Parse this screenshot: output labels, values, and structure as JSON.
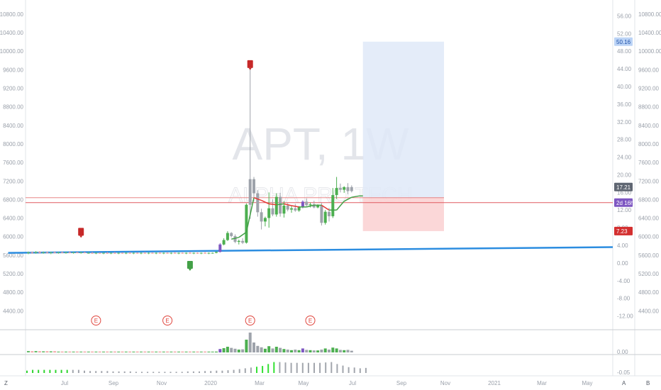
{
  "chart_data": {
    "type": "candlestick",
    "symbol_watermark": "APT, 1W",
    "subtitle_watermark": "ALPHA PRO TECH",
    "x_labels": [
      "Jul",
      "Sep",
      "Nov",
      "2020",
      "Mar",
      "May",
      "Jul",
      "Sep",
      "Nov",
      "2021",
      "Mar",
      "May"
    ],
    "left_axis": {
      "ticks": [
        "4400.00",
        "4800.00",
        "5200.00",
        "5600.00",
        "6000.00",
        "6400.00",
        "6800.00",
        "7200.00",
        "7600.00",
        "8000.00",
        "8400.00",
        "8800.00",
        "9200.00",
        "9600.00",
        "10000.00",
        "10400.00",
        "10800.00"
      ],
      "ylim": [
        4100,
        10950
      ]
    },
    "right_axis": {
      "ticks": [
        "-12.00",
        "-8.00",
        "-4.00",
        "0.00",
        "4.00",
        "8.00",
        "12.00",
        "16.00",
        "20.00",
        "24.00",
        "28.00",
        "32.00",
        "36.00",
        "40.00",
        "44.00",
        "48.00",
        "52.00",
        "56.00"
      ],
      "ylim": [
        -14,
        58
      ]
    },
    "far_right_axis": {
      "ticks": [
        "4400.00",
        "4800.00",
        "5200.00",
        "5600.00",
        "6000.00",
        "6400.00",
        "6800.00",
        "7200.00",
        "7600.00",
        "8000.00",
        "8400.00",
        "8800.00",
        "9200.00",
        "9600.00",
        "10000.00",
        "10400.00",
        "10800.00"
      ]
    },
    "price_labels": [
      {
        "text": "50.16",
        "value": 50.16,
        "color": "#bcd4f6",
        "text_color": "#1d4fa8"
      },
      {
        "text": "17.21",
        "value": 17.21,
        "color": "#5f6672",
        "text_color": "#ffffff"
      },
      {
        "text": "2d 16h",
        "value": 14.8,
        "color": "#7e57c2",
        "text_color": "#ffffff"
      },
      {
        "text": "7.23",
        "value": 7.23,
        "color": "#d32f2f",
        "text_color": "#ffffff"
      }
    ],
    "candles": [
      {
        "o": 2.3,
        "h": 2.6,
        "l": 2.0,
        "c": 2.4,
        "v": 0.5,
        "up": true
      },
      {
        "o": 2.4,
        "h": 2.6,
        "l": 2.1,
        "c": 2.3,
        "v": 0.4,
        "up": false
      },
      {
        "o": 2.3,
        "h": 2.7,
        "l": 2.1,
        "c": 2.5,
        "v": 0.5,
        "up": true
      },
      {
        "o": 2.5,
        "h": 2.7,
        "l": 2.2,
        "c": 2.3,
        "v": 0.4,
        "up": false
      },
      {
        "o": 2.3,
        "h": 2.6,
        "l": 2.1,
        "c": 2.4,
        "v": 0.4,
        "up": true
      },
      {
        "o": 2.4,
        "h": 2.6,
        "l": 2.2,
        "c": 2.3,
        "v": 0.4,
        "up": false
      },
      {
        "o": 2.3,
        "h": 2.5,
        "l": 2.0,
        "c": 2.4,
        "v": 0.4,
        "up": true
      },
      {
        "o": 2.4,
        "h": 2.6,
        "l": 2.2,
        "c": 2.3,
        "v": 0.4,
        "up": false
      },
      {
        "o": 2.3,
        "h": 2.5,
        "l": 2.1,
        "c": 2.4,
        "v": 0.3,
        "up": true
      },
      {
        "o": 2.4,
        "h": 2.6,
        "l": 2.2,
        "c": 2.3,
        "v": 0.3,
        "up": false
      },
      {
        "o": 2.3,
        "h": 2.5,
        "l": 2.1,
        "c": 2.4,
        "v": 0.3,
        "up": true
      },
      {
        "o": 2.4,
        "h": 2.6,
        "l": 2.2,
        "c": 2.3,
        "v": 0.3,
        "up": false
      },
      {
        "o": 2.3,
        "h": 2.5,
        "l": 2.1,
        "c": 2.4,
        "v": 0.3,
        "up": true
      },
      {
        "o": 2.4,
        "h": 2.5,
        "l": 2.2,
        "c": 2.3,
        "v": 0.3,
        "up": false
      },
      {
        "o": 2.3,
        "h": 2.5,
        "l": 2.1,
        "c": 2.4,
        "v": 0.3,
        "up": true
      },
      {
        "o": 2.4,
        "h": 2.5,
        "l": 2.2,
        "c": 2.3,
        "v": 0.3,
        "up": false
      },
      {
        "o": 2.3,
        "h": 2.5,
        "l": 2.1,
        "c": 2.3,
        "v": 0.3,
        "up": true
      },
      {
        "o": 2.3,
        "h": 2.5,
        "l": 2.1,
        "c": 2.2,
        "v": 0.3,
        "up": false
      },
      {
        "o": 2.2,
        "h": 2.4,
        "l": 2.0,
        "c": 2.3,
        "v": 0.3,
        "up": true
      },
      {
        "o": 2.3,
        "h": 2.4,
        "l": 2.1,
        "c": 2.2,
        "v": 0.3,
        "up": false
      },
      {
        "o": 2.2,
        "h": 2.4,
        "l": 2.0,
        "c": 2.3,
        "v": 0.3,
        "up": true
      },
      {
        "o": 2.3,
        "h": 2.5,
        "l": 2.1,
        "c": 2.2,
        "v": 0.3,
        "up": false
      },
      {
        "o": 2.2,
        "h": 2.4,
        "l": 2.0,
        "c": 2.3,
        "v": 0.3,
        "up": true
      },
      {
        "o": 2.3,
        "h": 2.5,
        "l": 2.1,
        "c": 2.2,
        "v": 0.3,
        "up": false
      },
      {
        "o": 2.2,
        "h": 2.4,
        "l": 2.0,
        "c": 2.3,
        "v": 0.3,
        "up": true
      },
      {
        "o": 2.3,
        "h": 2.4,
        "l": 2.1,
        "c": 2.2,
        "v": 0.3,
        "up": false
      },
      {
        "o": 2.2,
        "h": 2.4,
        "l": 2.0,
        "c": 2.3,
        "v": 0.3,
        "up": true
      },
      {
        "o": 2.3,
        "h": 2.5,
        "l": 2.1,
        "c": 2.2,
        "v": 0.3,
        "up": false
      },
      {
        "o": 2.2,
        "h": 2.4,
        "l": 2.0,
        "c": 2.3,
        "v": 0.3,
        "up": true
      },
      {
        "o": 2.3,
        "h": 2.4,
        "l": 2.1,
        "c": 2.2,
        "v": 0.3,
        "up": false
      },
      {
        "o": 2.2,
        "h": 2.4,
        "l": 2.0,
        "c": 2.3,
        "v": 0.3,
        "up": true
      },
      {
        "o": 2.3,
        "h": 2.5,
        "l": 2.1,
        "c": 2.2,
        "v": 0.3,
        "up": false
      },
      {
        "o": 2.2,
        "h": 2.4,
        "l": 2.0,
        "c": 2.3,
        "v": 0.3,
        "up": true
      },
      {
        "o": 2.3,
        "h": 2.4,
        "l": 2.1,
        "c": 2.2,
        "v": 0.3,
        "up": false
      },
      {
        "o": 2.2,
        "h": 2.4,
        "l": 2.0,
        "c": 2.3,
        "v": 0.3,
        "up": true
      },
      {
        "o": 2.3,
        "h": 2.5,
        "l": 2.1,
        "c": 2.2,
        "v": 0.3,
        "up": false
      },
      {
        "o": 2.2,
        "h": 2.4,
        "l": 2.0,
        "c": 2.3,
        "v": 0.3,
        "up": true
      },
      {
        "o": 2.3,
        "h": 2.4,
        "l": 2.1,
        "c": 2.2,
        "v": 0.3,
        "up": false
      },
      {
        "o": 2.2,
        "h": 2.4,
        "l": 2.0,
        "c": 2.3,
        "v": 0.3,
        "up": true
      },
      {
        "o": 2.3,
        "h": 2.5,
        "l": 2.1,
        "c": 2.2,
        "v": 0.3,
        "up": false
      },
      {
        "o": 2.2,
        "h": 2.4,
        "l": 2.0,
        "c": 2.3,
        "v": 0.3,
        "up": true
      },
      {
        "o": 2.3,
        "h": 2.4,
        "l": 2.1,
        "c": 2.2,
        "v": 0.3,
        "up": false
      },
      {
        "o": 2.2,
        "h": 2.4,
        "l": 2.0,
        "c": 2.3,
        "v": 0.3,
        "up": true
      },
      {
        "o": 2.3,
        "h": 2.5,
        "l": 2.1,
        "c": 2.2,
        "v": 0.3,
        "up": false
      },
      {
        "o": 2.2,
        "h": 2.4,
        "l": 2.0,
        "c": 2.3,
        "v": 0.3,
        "up": true
      },
      {
        "o": 2.3,
        "h": 2.4,
        "l": 2.1,
        "c": 2.2,
        "v": 0.3,
        "up": false
      },
      {
        "o": 2.2,
        "h": 2.4,
        "l": 2.0,
        "c": 2.3,
        "v": 0.3,
        "up": true
      },
      {
        "o": 2.3,
        "h": 2.5,
        "l": 2.1,
        "c": 2.2,
        "v": 0.3,
        "up": false
      },
      {
        "o": 2.2,
        "h": 2.4,
        "l": 2.0,
        "c": 2.3,
        "v": 0.3,
        "up": true
      },
      {
        "o": 2.3,
        "h": 2.4,
        "l": 2.1,
        "c": 2.3,
        "v": 0.3,
        "up": true
      },
      {
        "o": 2.3,
        "h": 2.6,
        "l": 2.2,
        "c": 2.5,
        "v": 0.3,
        "up": true
      },
      {
        "o": 2.5,
        "h": 4.5,
        "l": 2.4,
        "c": 4.2,
        "v": 1.2,
        "up": true,
        "purple": true
      },
      {
        "o": 4.2,
        "h": 5.6,
        "l": 4.0,
        "c": 5.2,
        "v": 1.5,
        "up": true
      },
      {
        "o": 5.2,
        "h": 7.2,
        "l": 5.0,
        "c": 6.8,
        "v": 2.0,
        "up": true
      },
      {
        "o": 6.8,
        "h": 7.0,
        "l": 5.8,
        "c": 6.1,
        "v": 1.6,
        "up": false
      },
      {
        "o": 6.1,
        "h": 6.5,
        "l": 4.5,
        "c": 4.8,
        "v": 1.3,
        "up": false
      },
      {
        "o": 4.8,
        "h": 5.3,
        "l": 4.2,
        "c": 5.0,
        "v": 1.0,
        "up": true
      },
      {
        "o": 5.0,
        "h": 5.6,
        "l": 4.3,
        "c": 4.6,
        "v": 1.1,
        "up": false
      },
      {
        "o": 4.6,
        "h": 13.5,
        "l": 4.4,
        "c": 13.2,
        "v": 4.5,
        "up": true
      },
      {
        "o": 13.2,
        "h": 44.0,
        "l": 10.0,
        "c": 19.0,
        "v": 7.0,
        "up": false
      },
      {
        "o": 19.0,
        "h": 19.5,
        "l": 14.0,
        "c": 15.8,
        "v": 3.5,
        "up": false
      },
      {
        "o": 15.8,
        "h": 16.5,
        "l": 10.5,
        "c": 11.5,
        "v": 2.3,
        "up": false
      },
      {
        "o": 11.5,
        "h": 12.3,
        "l": 7.6,
        "c": 9.4,
        "v": 1.8,
        "up": false
      },
      {
        "o": 9.4,
        "h": 10.5,
        "l": 8.3,
        "c": 10.2,
        "v": 1.3,
        "up": true
      },
      {
        "o": 10.2,
        "h": 16.0,
        "l": 8.0,
        "c": 12.4,
        "v": 2.2,
        "up": true
      },
      {
        "o": 12.4,
        "h": 14.4,
        "l": 10.6,
        "c": 11.0,
        "v": 1.4,
        "up": false
      },
      {
        "o": 11.0,
        "h": 15.8,
        "l": 10.5,
        "c": 15.0,
        "v": 2.0,
        "up": true
      },
      {
        "o": 15.0,
        "h": 15.9,
        "l": 10.5,
        "c": 11.2,
        "v": 1.6,
        "up": false
      },
      {
        "o": 11.2,
        "h": 14.0,
        "l": 10.3,
        "c": 13.0,
        "v": 1.2,
        "up": true
      },
      {
        "o": 13.0,
        "h": 13.6,
        "l": 11.7,
        "c": 12.1,
        "v": 1.0,
        "up": false
      },
      {
        "o": 12.1,
        "h": 12.9,
        "l": 11.4,
        "c": 12.4,
        "v": 0.8,
        "up": true
      },
      {
        "o": 12.4,
        "h": 13.4,
        "l": 11.6,
        "c": 11.9,
        "v": 1.0,
        "up": false
      },
      {
        "o": 11.9,
        "h": 12.9,
        "l": 11.6,
        "c": 12.6,
        "v": 0.8,
        "up": true
      },
      {
        "o": 12.6,
        "h": 14.2,
        "l": 12.4,
        "c": 13.9,
        "v": 1.4,
        "up": true,
        "purple": true
      },
      {
        "o": 13.9,
        "h": 14.6,
        "l": 12.8,
        "c": 13.1,
        "v": 0.9,
        "up": false
      },
      {
        "o": 13.1,
        "h": 13.7,
        "l": 12.6,
        "c": 13.3,
        "v": 0.8,
        "up": true
      },
      {
        "o": 13.3,
        "h": 14.1,
        "l": 12.4,
        "c": 12.6,
        "v": 0.7,
        "up": false
      },
      {
        "o": 12.6,
        "h": 13.3,
        "l": 12.4,
        "c": 13.0,
        "v": 0.7,
        "up": true
      },
      {
        "o": 13.0,
        "h": 13.6,
        "l": 8.5,
        "c": 9.1,
        "v": 1.0,
        "up": false
      },
      {
        "o": 9.1,
        "h": 12.0,
        "l": 8.7,
        "c": 11.6,
        "v": 1.4,
        "up": true
      },
      {
        "o": 11.6,
        "h": 12.5,
        "l": 9.4,
        "c": 10.6,
        "v": 1.0,
        "up": false
      },
      {
        "o": 10.6,
        "h": 17.0,
        "l": 10.2,
        "c": 15.4,
        "v": 1.7,
        "up": true
      },
      {
        "o": 15.4,
        "h": 19.5,
        "l": 14.5,
        "c": 17.0,
        "v": 1.4,
        "up": true
      },
      {
        "o": 17.0,
        "h": 18.0,
        "l": 16.0,
        "c": 16.6,
        "v": 0.9,
        "up": false
      },
      {
        "o": 16.6,
        "h": 17.4,
        "l": 15.9,
        "c": 17.2,
        "v": 0.8,
        "up": true
      },
      {
        "o": 17.2,
        "h": 18.1,
        "l": 15.6,
        "c": 16.3,
        "v": 0.9,
        "up": false
      },
      {
        "o": 16.3,
        "h": 17.6,
        "l": 16.0,
        "c": 17.21,
        "v": 0.6,
        "up": false
      }
    ],
    "ma_line": [
      [
        54,
        5.4
      ],
      [
        56,
        5.8
      ],
      [
        58,
        7.0
      ],
      [
        60,
        14.8
      ],
      [
        62,
        14.2
      ],
      [
        64,
        13.4
      ],
      [
        66,
        13.2
      ],
      [
        68,
        13.4
      ],
      [
        70,
        13.0
      ],
      [
        72,
        12.7
      ],
      [
        74,
        12.7
      ],
      [
        76,
        13.1
      ],
      [
        78,
        13.1
      ],
      [
        80,
        12.0
      ],
      [
        82,
        12.0
      ],
      [
        84,
        14.0
      ],
      [
        86,
        14.9
      ],
      [
        88,
        15.2
      ],
      [
        89,
        15.2
      ]
    ],
    "risk_reward": {
      "start_index": 89,
      "end_index": 110,
      "target": 50.16,
      "entry": 14.8,
      "stop": 7.23
    },
    "trend_line": {
      "x1_index": -5,
      "y1": 2.3,
      "x2_index": 138,
      "y2": 3.6
    },
    "horizontal_line": {
      "value": 14.8
    },
    "flags": [
      {
        "index": 14,
        "value": 7.0,
        "kind": "sell"
      },
      {
        "index": 43,
        "value": -0.5,
        "kind": "buy"
      },
      {
        "index": 59,
        "value": 45.0,
        "kind": "sell"
      }
    ],
    "earnings_markers": [
      {
        "index": 18,
        "label": "E"
      },
      {
        "index": 37,
        "label": "E"
      },
      {
        "index": 59,
        "label": "E"
      },
      {
        "index": 75,
        "label": "E"
      }
    ],
    "volume_pane": {
      "right_ticks": [
        "0.00"
      ]
    },
    "histogram_pane": {
      "right_ticks": [
        "-0.05"
      ],
      "values": [
        0.6,
        0.8,
        0.8,
        0.8,
        0.8,
        0.8,
        0.8,
        0.8,
        0.8,
        0.8,
        0.6,
        0.5,
        0.5,
        0.5,
        0.5,
        0.4,
        0.4,
        0.4,
        0.4,
        0.3,
        0.3,
        0.3,
        0.3,
        0.3,
        0.3,
        0.3,
        0.3,
        0.3,
        0.4,
        0.4,
        0.4,
        0.5,
        0.5,
        0.6,
        0.6,
        0.7,
        0.8,
        1.0,
        1.2,
        1.4,
        1.6,
        1.8,
        2.3,
        2.8,
        2.8,
        2.7,
        2.6,
        2.6,
        2.6,
        2.6,
        2.6,
        2.6,
        2.7,
        2.8,
        2.3,
        1.9,
        1.5,
        1.4,
        1.2,
        1.3
      ]
    },
    "bottom_buttons": {
      "left": "Z",
      "auto": "A",
      "log": "B"
    }
  }
}
